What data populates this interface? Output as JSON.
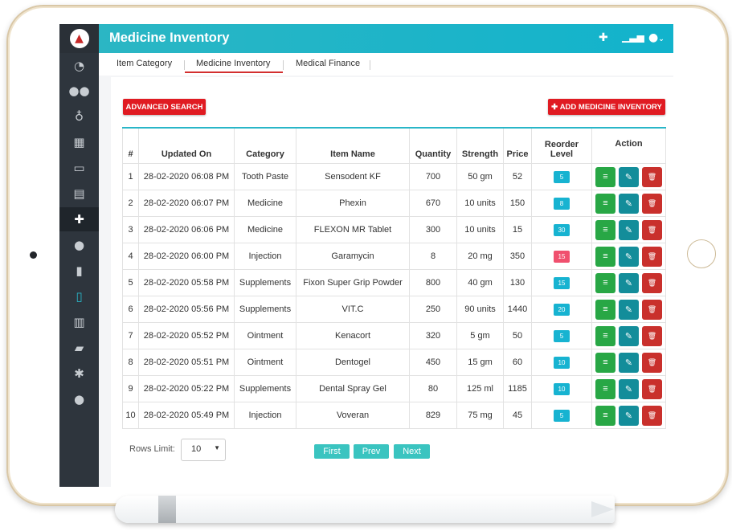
{
  "app": {
    "title": "Medicine Inventory"
  },
  "tabs": [
    {
      "label": "Item Category"
    },
    {
      "label": "Medicine Inventory",
      "active": true
    },
    {
      "label": "Medical Finance"
    }
  ],
  "toolbar": {
    "advanced_search": "ADVANCED SEARCH",
    "add_inventory": "ADD MEDICINE INVENTORY"
  },
  "table": {
    "headers": [
      "#",
      "Updated On",
      "Category",
      "Item Name",
      "Quantity",
      "Strength",
      "Price",
      "Reorder Level",
      "Action"
    ],
    "rows": [
      {
        "no": "1",
        "updated": "28-02-2020 06:08 PM",
        "category": "Tooth Paste",
        "item": "Sensodent KF",
        "qty": "700",
        "strength": "50 gm",
        "price": "52",
        "reorder": "5",
        "status": "ok"
      },
      {
        "no": "2",
        "updated": "28-02-2020 06:07 PM",
        "category": "Medicine",
        "item": "Phexin",
        "qty": "670",
        "strength": "10 units",
        "price": "150",
        "reorder": "8",
        "status": "ok"
      },
      {
        "no": "3",
        "updated": "28-02-2020 06:06 PM",
        "category": "Medicine",
        "item": "FLEXON MR Tablet",
        "qty": "300",
        "strength": "10 units",
        "price": "15",
        "reorder": "30",
        "status": "ok"
      },
      {
        "no": "4",
        "updated": "28-02-2020 06:00 PM",
        "category": "Injection",
        "item": "Garamycin",
        "qty": "8",
        "strength": "20 mg",
        "price": "350",
        "reorder": "15",
        "status": "low"
      },
      {
        "no": "5",
        "updated": "28-02-2020 05:58 PM",
        "category": "Supplements",
        "item": "Fixon Super Grip Powder",
        "qty": "800",
        "strength": "40 gm",
        "price": "130",
        "reorder": "15",
        "status": "ok"
      },
      {
        "no": "6",
        "updated": "28-02-2020 05:56 PM",
        "category": "Supplements",
        "item": "VIT.C",
        "qty": "250",
        "strength": "90 units",
        "price": "1440",
        "reorder": "20",
        "status": "ok"
      },
      {
        "no": "7",
        "updated": "28-02-2020 05:52 PM",
        "category": "Ointment",
        "item": "Kenacort",
        "qty": "320",
        "strength": "5 gm",
        "price": "50",
        "reorder": "5",
        "status": "ok"
      },
      {
        "no": "8",
        "updated": "28-02-2020 05:51 PM",
        "category": "Ointment",
        "item": "Dentogel",
        "qty": "450",
        "strength": "15 gm",
        "price": "60",
        "reorder": "10",
        "status": "ok"
      },
      {
        "no": "9",
        "updated": "28-02-2020 05:22 PM",
        "category": "Supplements",
        "item": "Dental Spray Gel",
        "qty": "80",
        "strength": "125 ml",
        "price": "1185",
        "reorder": "10",
        "status": "ok"
      },
      {
        "no": "10",
        "updated": "28-02-2020 05:49 PM",
        "category": "Injection",
        "item": "Voveran",
        "qty": "829",
        "strength": "75 mg",
        "price": "45",
        "reorder": "5",
        "status": "ok"
      }
    ]
  },
  "footer": {
    "rows_limit_label": "Rows Limit:",
    "rows_limit_value": "10",
    "pagination": {
      "first": "First",
      "prev": "Prev",
      "next": "Next"
    }
  },
  "colors": {
    "accent": "#12b3cc",
    "danger": "#e01b22",
    "badge_ok": "#17b3d1",
    "badge_low": "#f0506e",
    "view": "#28a745",
    "edit": "#138d9a",
    "delete": "#c9302c"
  },
  "icons": {
    "sidebar": [
      "dashboard-icon",
      "users-icon",
      "stethoscope-icon",
      "calendar-icon",
      "laptop-icon",
      "grid-icon",
      "medical-plus-icon",
      "user-icon",
      "document-icon",
      "file-medical-icon",
      "bar-chart-icon",
      "files-icon",
      "gear-icon",
      "chat-icon"
    ],
    "topbar": [
      "plus-icon",
      "signal-icon",
      "user-icon",
      "chevron-down-icon"
    ],
    "row_actions": [
      "list-icon",
      "pencil-icon",
      "trash-icon"
    ]
  }
}
